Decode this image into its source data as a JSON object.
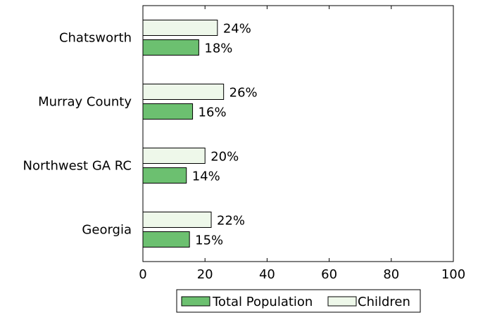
{
  "chart_data": {
    "type": "bar",
    "orientation": "horizontal",
    "title": "",
    "xlabel": "",
    "ylabel": "",
    "categories": [
      "Chatsworth",
      "Murray County",
      "Northwest GA RC",
      "Georgia"
    ],
    "series": [
      {
        "name": "Total Population",
        "color": "#6cc070",
        "values": [
          18,
          16,
          14,
          15
        ],
        "labels": [
          "18%",
          "16%",
          "14%",
          "15%"
        ]
      },
      {
        "name": "Children",
        "color": "#eef8ea",
        "values": [
          24,
          26,
          20,
          22
        ],
        "labels": [
          "24%",
          "26%",
          "20%",
          "22%"
        ]
      }
    ],
    "xlim": [
      0,
      100
    ],
    "xticks": [
      0,
      20,
      40,
      60,
      80,
      100
    ],
    "xtick_labels": [
      "0",
      "20",
      "40",
      "60",
      "80",
      "100"
    ],
    "grid": false,
    "legend_position": "bottom"
  }
}
